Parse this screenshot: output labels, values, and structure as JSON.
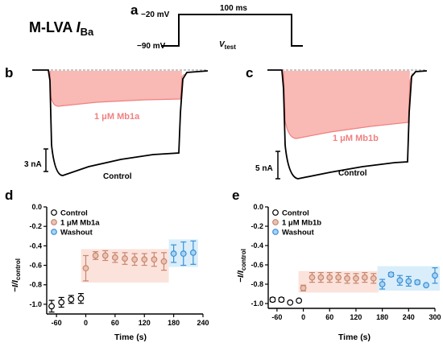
{
  "title": {
    "main": "M-LVA ",
    "italic": "I",
    "sub": "Ba"
  },
  "panels": {
    "a": "a",
    "b": "b",
    "c": "c",
    "d": "d",
    "e": "e"
  },
  "protocol": {
    "v_high": "−20 mV",
    "v_low": "−90 mV",
    "duration": "100 ms",
    "v_test_main": "V",
    "v_test_sub": "test"
  },
  "trace_b": {
    "drug_label": "1 μM Mb1a",
    "control_label": "Control",
    "scale_label": "3 nA",
    "fill_color": "#f9b9b4",
    "drug_color": "#f08080"
  },
  "trace_c": {
    "drug_label": "1 μM Mb1b",
    "control_label": "Control",
    "scale_label": "5 nA",
    "fill_color": "#f9b9b4",
    "drug_color": "#f08080"
  },
  "legend_d": [
    "Control",
    "1 μM Mb1a",
    "Washout"
  ],
  "legend_e": [
    "Control",
    "1 μM Mb1b",
    "Washout"
  ],
  "colors": {
    "control": "#000000",
    "drug": "#c9856e",
    "drug_fill": "#e8c4b3",
    "washout": "#3a8fd6",
    "washout_fill": "#a9d3f2",
    "band_drug": "#fbe3dc",
    "band_washout": "#d9eefa"
  },
  "chart_data": [
    {
      "panel": "d",
      "type": "scatter",
      "xlabel": "Time (s)",
      "ylabel_main": "−I/I",
      "ylabel_sub": "control",
      "xlim": [
        -80,
        240
      ],
      "ylim": [
        -1.1,
        0
      ],
      "xticks": [
        -60,
        0,
        60,
        120,
        180,
        240
      ],
      "yticks": [
        -1.0,
        -0.8,
        -0.6,
        -0.4,
        -0.2,
        0.0
      ],
      "ytick_labels": [
        "-1.0",
        "-0.8",
        "-0.6",
        "-0.4",
        "-0.2",
        "0.0"
      ],
      "series": [
        {
          "name": "Control",
          "x": [
            -70,
            -50,
            -30,
            -10
          ],
          "y": [
            -1.02,
            -0.98,
            -0.95,
            -0.94
          ],
          "err": [
            0.06,
            0.05,
            0.04,
            0.05
          ]
        },
        {
          "name": "1 μM Mb1a",
          "x": [
            0,
            20,
            40,
            60,
            80,
            100,
            120,
            140,
            160
          ],
          "y": [
            -0.63,
            -0.5,
            -0.5,
            -0.52,
            -0.53,
            -0.54,
            -0.54,
            -0.54,
            -0.56
          ],
          "err": [
            0.13,
            0.04,
            0.05,
            0.05,
            0.06,
            0.06,
            0.06,
            0.07,
            0.09
          ]
        },
        {
          "name": "Washout",
          "x": [
            180,
            200,
            220
          ],
          "y": [
            -0.48,
            -0.48,
            -0.47
          ],
          "err": [
            0.09,
            0.12,
            0.12
          ]
        }
      ]
    },
    {
      "panel": "e",
      "type": "scatter",
      "xlabel": "Time (s)",
      "ylabel_main": "−I/I",
      "ylabel_sub": "control",
      "xlim": [
        -80,
        300
      ],
      "ylim": [
        -1.05,
        0
      ],
      "xticks": [
        -60,
        0,
        60,
        120,
        180,
        240,
        300
      ],
      "yticks": [
        -1.0,
        -0.8,
        -0.6,
        -0.4,
        -0.2,
        0.0
      ],
      "ytick_labels": [
        "-1.0",
        "-0.8",
        "-0.6",
        "-0.4",
        "-0.2",
        "0.0"
      ],
      "series": [
        {
          "name": "Control",
          "x": [
            -70,
            -50,
            -30,
            -10
          ],
          "y": [
            -0.96,
            -0.96,
            -0.99,
            -0.97
          ],
          "err": [
            0.02,
            0.02,
            0.01,
            0.01
          ]
        },
        {
          "name": "1 μM Mb1b",
          "x": [
            0,
            20,
            40,
            60,
            80,
            100,
            120,
            140,
            160
          ],
          "y": [
            -0.84,
            -0.73,
            -0.73,
            -0.73,
            -0.73,
            -0.74,
            -0.74,
            -0.73,
            -0.74
          ],
          "err": [
            0.03,
            0.05,
            0.05,
            0.05,
            0.05,
            0.05,
            0.05,
            0.05,
            0.05
          ]
        },
        {
          "name": "Washout",
          "x": [
            180,
            200,
            220,
            240,
            260,
            280,
            300
          ],
          "y": [
            -0.8,
            -0.7,
            -0.76,
            -0.77,
            -0.78,
            -0.81,
            -0.71
          ],
          "err": [
            0.05,
            0.02,
            0.05,
            0.05,
            0.02,
            0.01,
            0.08
          ]
        }
      ]
    }
  ]
}
